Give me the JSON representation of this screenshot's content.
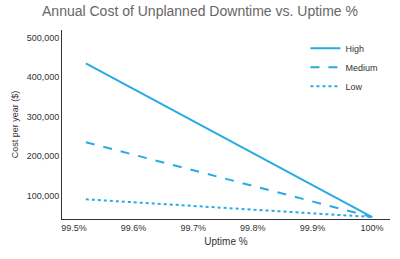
{
  "chart_data": {
    "type": "line",
    "title": "Annual Cost of Unplanned Downtime vs. Uptime %",
    "x_label": "Uptime %",
    "y_label": "Cost per year ($)",
    "x": [
      99.52,
      100
    ],
    "series": [
      {
        "name": "High",
        "color": "#29abe2",
        "line_style": "solid",
        "values": [
          435000,
          45000
        ]
      },
      {
        "name": "Medium",
        "color": "#29abe2",
        "line_style": "dashed",
        "values": [
          235000,
          45000
        ]
      },
      {
        "name": "Low",
        "color": "#29abe2",
        "line_style": "dotted",
        "values": [
          90000,
          45000
        ]
      }
    ],
    "xlim": [
      99.48,
      100.03
    ],
    "ylim": [
      40000,
      520000
    ],
    "xticks": [
      {
        "value": 99.5,
        "label": "99.5%"
      },
      {
        "value": 99.6,
        "label": "99.6%"
      },
      {
        "value": 99.7,
        "label": "99.7%"
      },
      {
        "value": 99.8,
        "label": "99.8%"
      },
      {
        "value": 99.9,
        "label": "99.9%"
      },
      {
        "value": 100,
        "label": "100%"
      }
    ],
    "yticks": [
      {
        "value": 100000,
        "label": "100,000"
      },
      {
        "value": 200000,
        "label": "200,000"
      },
      {
        "value": 300000,
        "label": "300,000"
      },
      {
        "value": 400000,
        "label": "400,000"
      },
      {
        "value": 500000,
        "label": "500,000"
      }
    ],
    "grid": false,
    "legend": "upper right"
  }
}
